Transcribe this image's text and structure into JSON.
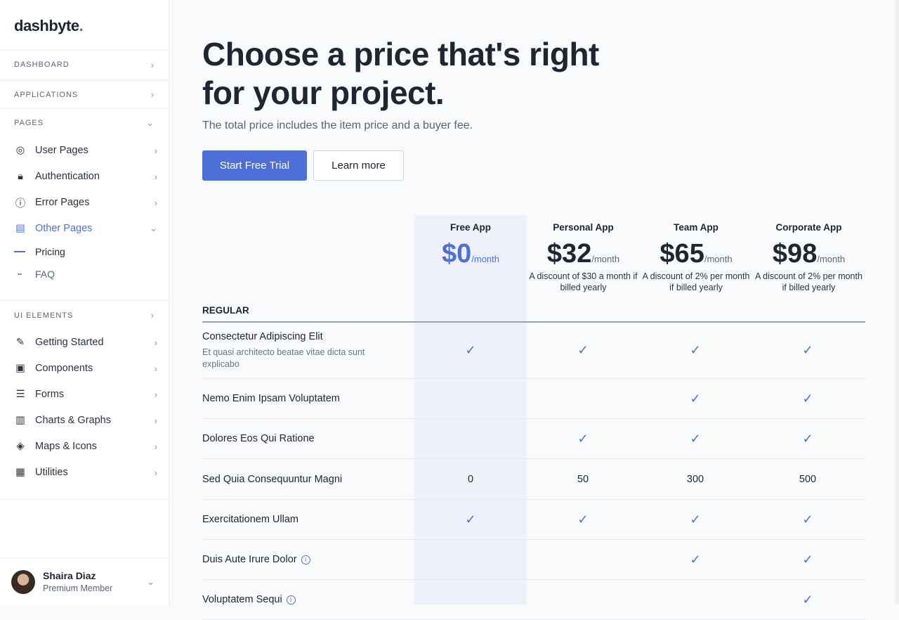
{
  "brand": {
    "name": "dashbyte",
    "dot": "."
  },
  "sidebar": {
    "sections": [
      {
        "label": "DASHBOARD"
      },
      {
        "label": "APPLICATIONS"
      },
      {
        "label": "PAGES"
      },
      {
        "label": "UI ELEMENTS"
      }
    ],
    "pages": [
      {
        "label": "User Pages",
        "icon": "user-circle-icon"
      },
      {
        "label": "Authentication",
        "icon": "lock-icon"
      },
      {
        "label": "Error Pages",
        "icon": "alert-circle-icon"
      },
      {
        "label": "Other Pages",
        "icon": "file-icon",
        "active": true
      }
    ],
    "other_sub": [
      {
        "label": "Pricing",
        "active": true
      },
      {
        "label": "FAQ"
      }
    ],
    "ui": [
      {
        "label": "Getting Started",
        "icon": "tools-icon"
      },
      {
        "label": "Components",
        "icon": "briefcase-icon"
      },
      {
        "label": "Forms",
        "icon": "list-icon"
      },
      {
        "label": "Charts & Graphs",
        "icon": "bar-chart-icon"
      },
      {
        "label": "Maps & Icons",
        "icon": "layers-icon"
      },
      {
        "label": "Utilities",
        "icon": "toolbox-icon"
      }
    ],
    "user": {
      "name": "Shaira Diaz",
      "role": "Premium Member"
    }
  },
  "hero": {
    "title": "Choose a price that's right for your project.",
    "subtitle": "The total price includes the item price and a buyer fee.",
    "primary": "Start Free Trial",
    "secondary": "Learn more"
  },
  "accent": "#4f6fd8",
  "plans": [
    {
      "name": "Free App",
      "price": "$0",
      "period": "/month",
      "note": ""
    },
    {
      "name": "Personal App",
      "price": "$32",
      "period": "/month",
      "note": "A discount of $30 a month if billed yearly"
    },
    {
      "name": "Team App",
      "price": "$65",
      "period": "/month",
      "note": "A discount of 2% per month if billed yearly"
    },
    {
      "name": "Corporate App",
      "price": "$98",
      "period": "/month",
      "note": "A discount of 2% per month if billed yearly"
    }
  ],
  "group": "REGULAR",
  "features": [
    {
      "label": "Consectetur Adipiscing Elit",
      "desc": "Et quasi architecto beatae vitae dicta sunt explicabo",
      "values": [
        true,
        true,
        true,
        true
      ]
    },
    {
      "label": "Nemo Enim Ipsam Voluptatem",
      "values": [
        false,
        false,
        true,
        true
      ]
    },
    {
      "label": "Dolores Eos Qui Ratione",
      "values": [
        false,
        true,
        true,
        true
      ]
    },
    {
      "label": "Sed Quia Consequuntur Magni",
      "values": [
        "0",
        "50",
        "300",
        "500"
      ]
    },
    {
      "label": "Exercitationem Ullam",
      "values": [
        true,
        true,
        true,
        true
      ]
    },
    {
      "label": "Duis Aute Irure Dolor",
      "info": true,
      "values": [
        false,
        false,
        true,
        true
      ]
    },
    {
      "label": "Voluptatem Sequi",
      "info": true,
      "values": [
        false,
        false,
        false,
        true
      ]
    }
  ]
}
